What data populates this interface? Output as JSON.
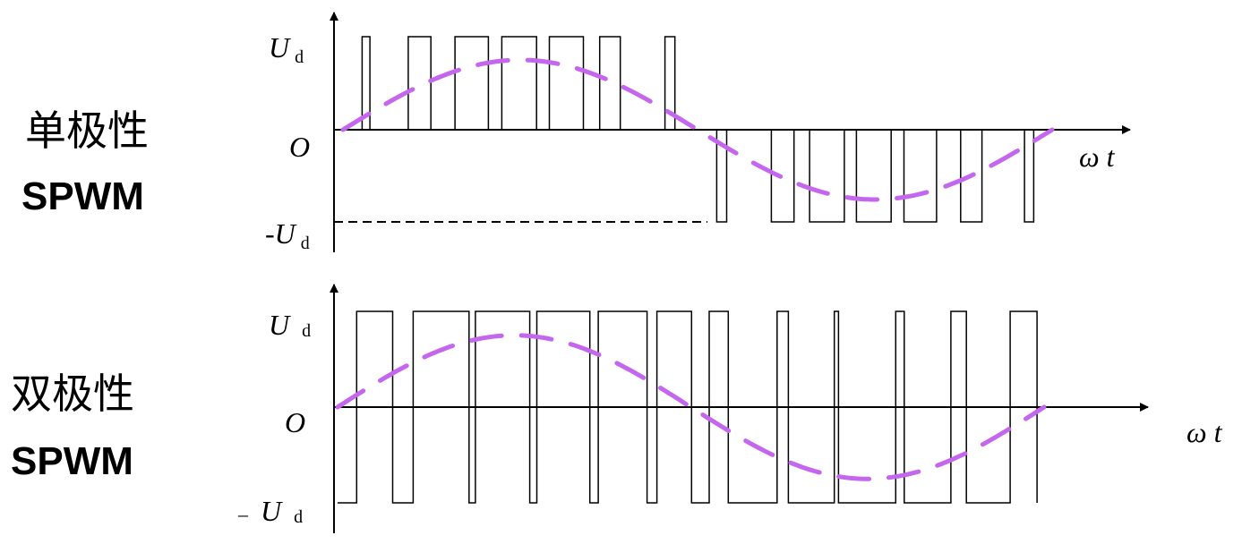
{
  "panels": [
    {
      "mode": "unipolar",
      "label_cn": "单极性",
      "label_en": "SPWM",
      "y_top_label": {
        "symbol": "U",
        "sub": "d"
      },
      "y_zero_label": "O",
      "y_bottom_label": {
        "prefix": "-",
        "symbol": "U",
        "sub": "d"
      },
      "x_label": "ω t",
      "reference_wave": {
        "shape": "sine",
        "color": "#c466ee",
        "style": "dashed",
        "periods": 1,
        "amplitude_frac": 0.75
      },
      "positive_pulses": [
        [
          0.027,
          0.038
        ],
        [
          0.092,
          0.124
        ],
        [
          0.158,
          0.205
        ],
        [
          0.224,
          0.273
        ],
        [
          0.291,
          0.339
        ],
        [
          0.362,
          0.391
        ],
        [
          0.454,
          0.468
        ]
      ],
      "negative_pulses": [
        [
          0.527,
          0.541
        ],
        [
          0.604,
          0.636
        ],
        [
          0.658,
          0.707
        ],
        [
          0.724,
          0.773
        ],
        [
          0.791,
          0.837
        ],
        [
          0.871,
          0.901
        ],
        [
          0.961,
          0.974
        ]
      ]
    },
    {
      "mode": "bipolar",
      "label_cn": "双极性",
      "label_en": "SPWM",
      "y_top_label": {
        "symbol": "U",
        "sub": "d"
      },
      "y_zero_label": "O",
      "y_bottom_label": {
        "prefix": "–",
        "symbol": "U",
        "sub": "d"
      },
      "x_label": "ω t",
      "reference_wave": {
        "shape": "sine",
        "color": "#c466ee",
        "style": "dashed",
        "periods": 1,
        "amplitude_frac": 0.75
      },
      "positive_pulses": [
        [
          0.027,
          0.078
        ],
        [
          0.107,
          0.186
        ],
        [
          0.195,
          0.272
        ],
        [
          0.282,
          0.357
        ],
        [
          0.369,
          0.438
        ],
        [
          0.452,
          0.501
        ],
        [
          0.526,
          0.553
        ],
        [
          0.622,
          0.638
        ],
        [
          0.703,
          0.709
        ],
        [
          0.79,
          0.802
        ],
        [
          0.868,
          0.89
        ],
        [
          0.952,
          0.99
        ]
      ]
    }
  ],
  "colors": {
    "line": "#000000",
    "reference": "#c466ee"
  }
}
